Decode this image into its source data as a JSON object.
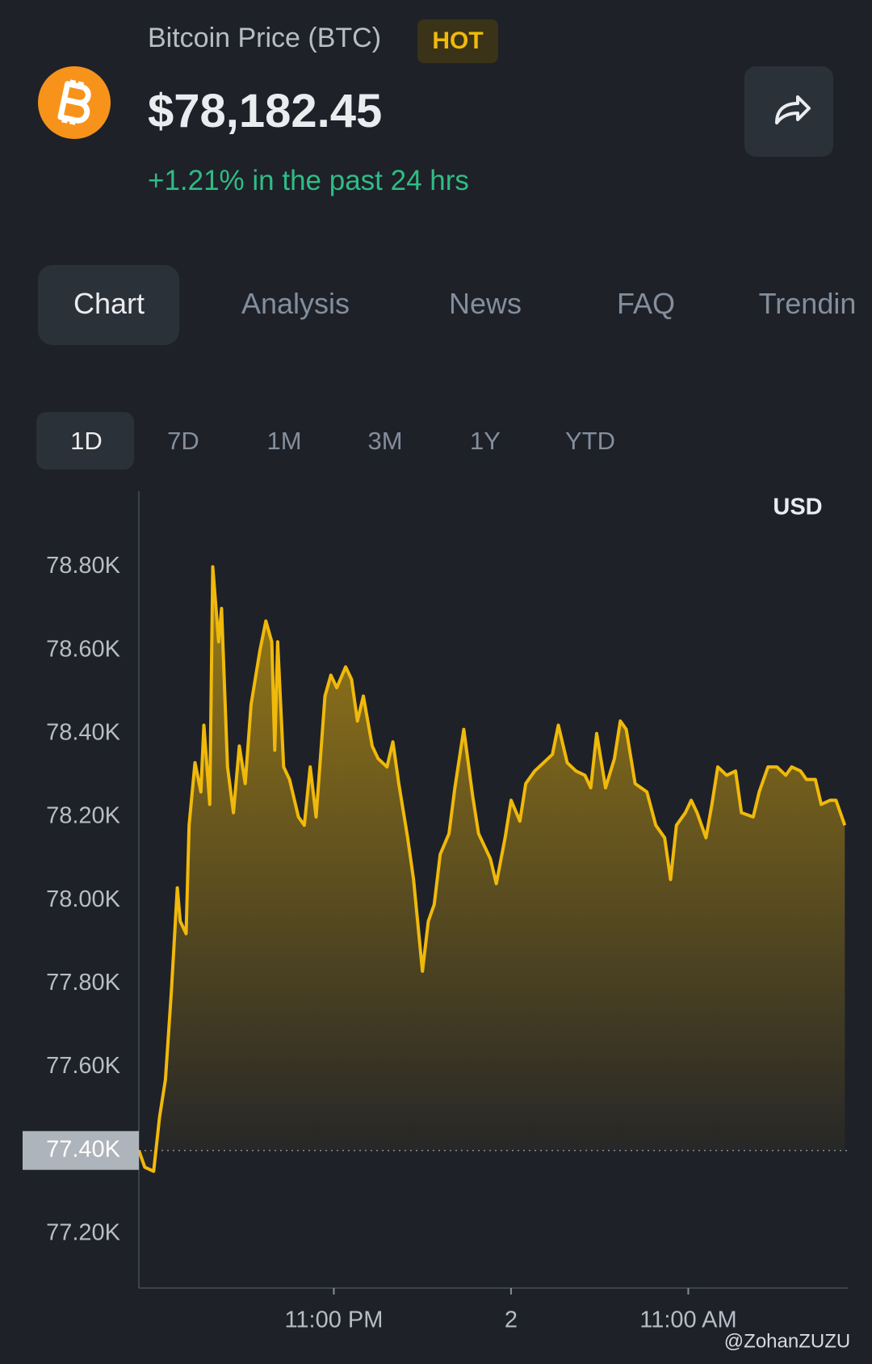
{
  "header": {
    "title": "Bitcoin Price (BTC)",
    "badge": "HOT",
    "price": "$78,182.45",
    "change": "+1.21% in the past 24 hrs"
  },
  "tabs": [
    "Chart",
    "Analysis",
    "News",
    "FAQ",
    "Trendin"
  ],
  "ranges": [
    "1D",
    "7D",
    "1M",
    "3M",
    "1Y",
    "YTD"
  ],
  "chart_data": {
    "type": "area",
    "currency_label": "USD",
    "color": "#f0b90b",
    "x": [
      16.4,
      16.6,
      16.9,
      17.1,
      17.3,
      17.5,
      17.7,
      17.8,
      18.0,
      18.1,
      18.3,
      18.5,
      18.6,
      18.8,
      18.9,
      19.1,
      19.2,
      19.4,
      19.6,
      19.8,
      20.0,
      20.2,
      20.5,
      20.7,
      20.9,
      21.0,
      21.1,
      21.3,
      21.5,
      21.8,
      22.0,
      22.2,
      22.4,
      22.7,
      22.9,
      23.1,
      23.4,
      23.6,
      23.8,
      24.0,
      24.3,
      24.5,
      24.8,
      25.0,
      25.2,
      25.5,
      25.7,
      26.0,
      26.2,
      26.4,
      26.6,
      26.9,
      27.1,
      27.4,
      27.7,
      27.9,
      28.3,
      28.5,
      28.8,
      29.0,
      29.3,
      29.5,
      29.8,
      30.1,
      30.4,
      30.6,
      30.9,
      31.2,
      31.5,
      31.7,
      31.9,
      32.2,
      32.5,
      32.7,
      32.9,
      33.2,
      33.6,
      33.9,
      34.2,
      34.4,
      34.6,
      34.9,
      35.1,
      35.3,
      35.6,
      35.8,
      36.0,
      36.3,
      36.6,
      36.8,
      37.2,
      37.4,
      37.7,
      38.0,
      38.3,
      38.5,
      38.8,
      39.0,
      39.3,
      39.5,
      39.8,
      40.0,
      40.3
    ],
    "values": [
      77400,
      77360,
      77350,
      77480,
      77570,
      77780,
      78030,
      77950,
      77920,
      78180,
      78330,
      78260,
      78420,
      78230,
      78800,
      78620,
      78700,
      78320,
      78210,
      78370,
      78280,
      78470,
      78600,
      78670,
      78620,
      78360,
      78620,
      78320,
      78290,
      78200,
      78180,
      78320,
      78200,
      78490,
      78540,
      78510,
      78560,
      78530,
      78430,
      78490,
      78370,
      78340,
      78320,
      78380,
      78280,
      78150,
      78050,
      77830,
      77950,
      77990,
      78110,
      78160,
      78270,
      78410,
      78250,
      78160,
      78100,
      78040,
      78150,
      78240,
      78190,
      78280,
      78310,
      78330,
      78350,
      78420,
      78330,
      78310,
      78300,
      78270,
      78400,
      78270,
      78340,
      78430,
      78410,
      78280,
      78260,
      78180,
      78150,
      78050,
      78180,
      78210,
      78240,
      78210,
      78150,
      78230,
      78320,
      78300,
      78310,
      78210,
      78200,
      78260,
      78320,
      78320,
      78300,
      78320,
      78310,
      78290,
      78290,
      78230,
      78240,
      78240,
      78180
    ],
    "xlim": [
      16.4,
      40.4
    ],
    "xticks": [
      {
        "value": 23,
        "label": "11:00 PM"
      },
      {
        "value": 29,
        "label": "2"
      },
      {
        "value": 35,
        "label": "11:00 AM"
      }
    ],
    "ylim": [
      77070,
      78890
    ],
    "yticks": [
      {
        "value": 77200,
        "label": "77.20K"
      },
      {
        "value": 77400,
        "label": "77.40K"
      },
      {
        "value": 77600,
        "label": "77.60K"
      },
      {
        "value": 77800,
        "label": "77.80K"
      },
      {
        "value": 78000,
        "label": "78.00K"
      },
      {
        "value": 78200,
        "label": "78.20K"
      },
      {
        "value": 78400,
        "label": "78.40K"
      },
      {
        "value": 78600,
        "label": "78.60K"
      },
      {
        "value": 78800,
        "label": "78.80K"
      }
    ],
    "reference_line": 77400
  },
  "watermark": "@ZohanZUZU"
}
